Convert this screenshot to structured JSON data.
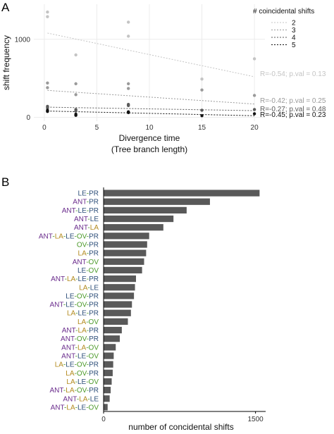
{
  "panels": {
    "a": {
      "letter": "A"
    },
    "b": {
      "letter": "B"
    }
  },
  "colors": {
    "region": {
      "LE": "#2e4f7a",
      "PR": "#2e4f7a",
      "ANT": "#6a2c8c",
      "LA": "#b38a1e",
      "OV": "#4c9a2a",
      "sep": "#4c9a2a"
    },
    "groups": {
      "2": "#c4c4c4",
      "3": "#9a9a9a",
      "4": "#5a5a5a",
      "5": "#111111"
    },
    "bar": "#595959"
  },
  "chart_data": [
    {
      "type": "scatter",
      "xlabel": "Divergence time",
      "xlabel2": "(Tree branch length)",
      "ylabel": "shift frequency",
      "xlim": [
        -1,
        21
      ],
      "ylim": [
        -50,
        1450
      ],
      "xticks": [
        0,
        5,
        10,
        15,
        20
      ],
      "yticks": [
        0,
        1000
      ],
      "grid": true,
      "legend": {
        "title": "# coincidental shifts",
        "position": "top-right",
        "entries": [
          "2",
          "3",
          "4",
          "5"
        ]
      },
      "series": [
        {
          "name": "2",
          "points": [
            [
              0.3,
              1350
            ],
            [
              0.3,
              1290
            ],
            [
              3,
              800
            ],
            [
              8,
              1220
            ],
            [
              8,
              1040
            ],
            [
              15,
              490
            ],
            [
              20,
              750
            ]
          ],
          "fit": [
            [
              0.3,
              1080
            ],
            [
              20,
              520
            ]
          ],
          "label": "R=-0.54; p.val = 0.13"
        },
        {
          "name": "3",
          "points": [
            [
              0.3,
              440
            ],
            [
              0.3,
              380
            ],
            [
              3,
              430
            ],
            [
              3,
              290
            ],
            [
              8,
              430
            ],
            [
              8,
              370
            ],
            [
              15,
              350
            ],
            [
              20,
              280
            ]
          ],
          "fit": [
            [
              0.3,
              345
            ],
            [
              20,
              170
            ]
          ],
          "label": "R=-0.42; p.val = 0.25"
        },
        {
          "name": "4",
          "points": [
            [
              0.3,
              140
            ],
            [
              0.3,
              120
            ],
            [
              3,
              100
            ],
            [
              3,
              80
            ],
            [
              8,
              165
            ],
            [
              8,
              150
            ],
            [
              15,
              90
            ],
            [
              20,
              100
            ]
          ],
          "fit": [
            [
              0.3,
              130
            ],
            [
              20,
              85
            ]
          ],
          "label": "R=-0.27; p.val = 0.48"
        },
        {
          "name": "5",
          "points": [
            [
              0.3,
              90
            ],
            [
              0.3,
              75
            ],
            [
              3,
              40
            ],
            [
              3,
              25
            ],
            [
              8,
              70
            ],
            [
              8,
              60
            ],
            [
              15,
              20
            ],
            [
              20,
              45
            ]
          ],
          "fit": [
            [
              0.3,
              80
            ],
            [
              20,
              20
            ]
          ],
          "label": "R=-0.45; p.val = 0.23"
        }
      ]
    },
    {
      "type": "bar",
      "orientation": "horizontal",
      "xlabel": "number of concidental shifts",
      "xlim": [
        0,
        1600
      ],
      "xticks": [
        0,
        1500
      ],
      "categories": [
        "LE-PR",
        "ANT-PR",
        "ANT-LE-PR",
        "ANT-LE",
        "ANT-LA",
        "ANT-LA-LE-OV-PR",
        "OV-PR",
        "LA-PR",
        "ANT-OV",
        "LE-OV",
        "ANT-LA-LE-PR",
        "LA-LE",
        "LE-OV-PR",
        "ANT-LE-OV-PR",
        "LA-LE-PR",
        "LA-OV",
        "ANT-LA-PR",
        "ANT-OV-PR",
        "ANT-LA-OV",
        "ANT-LE-OV",
        "LA-LE-OV-PR",
        "LA-OV-PR",
        "LA-LE-OV",
        "ANT-LA-OV-PR",
        "ANT-LA-LE",
        "ANT-LA-LE-OV"
      ],
      "values": [
        1540,
        1050,
        820,
        690,
        590,
        450,
        430,
        420,
        400,
        380,
        320,
        310,
        300,
        280,
        270,
        240,
        180,
        160,
        120,
        100,
        95,
        90,
        80,
        70,
        60,
        40
      ]
    }
  ]
}
